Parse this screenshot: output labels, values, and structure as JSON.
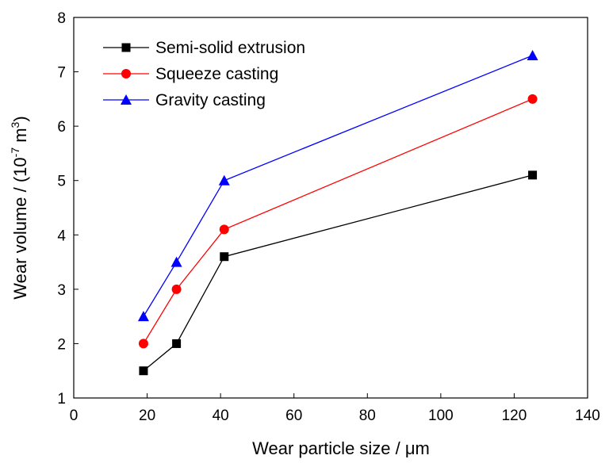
{
  "chart_data": {
    "type": "line",
    "title": "",
    "xlabel": "Wear particle size / μm",
    "ylabel": {
      "prefix": "Wear volume / (10",
      "exp": "-7",
      "mid": " m",
      "exp2": "3",
      "suffix": ")"
    },
    "xlim": [
      0,
      140
    ],
    "ylim": [
      1,
      8
    ],
    "xticks": [
      0,
      20,
      40,
      60,
      80,
      100,
      120,
      140
    ],
    "yticks": [
      1,
      2,
      3,
      4,
      5,
      6,
      7,
      8
    ],
    "x": [
      19,
      28,
      41,
      125
    ],
    "grid": false,
    "legend_position": "top-left",
    "series": [
      {
        "name": "Semi-solid extrusion",
        "values": [
          1.5,
          2.0,
          3.6,
          5.1
        ],
        "color": "#000000",
        "marker": "square"
      },
      {
        "name": "Squeeze casting",
        "values": [
          2.0,
          3.0,
          4.1,
          6.5
        ],
        "color": "#ff0000",
        "marker": "circle"
      },
      {
        "name": "Gravity casting",
        "values": [
          2.5,
          3.5,
          5.0,
          7.3
        ],
        "color": "#0000ff",
        "marker": "triangle"
      }
    ]
  }
}
